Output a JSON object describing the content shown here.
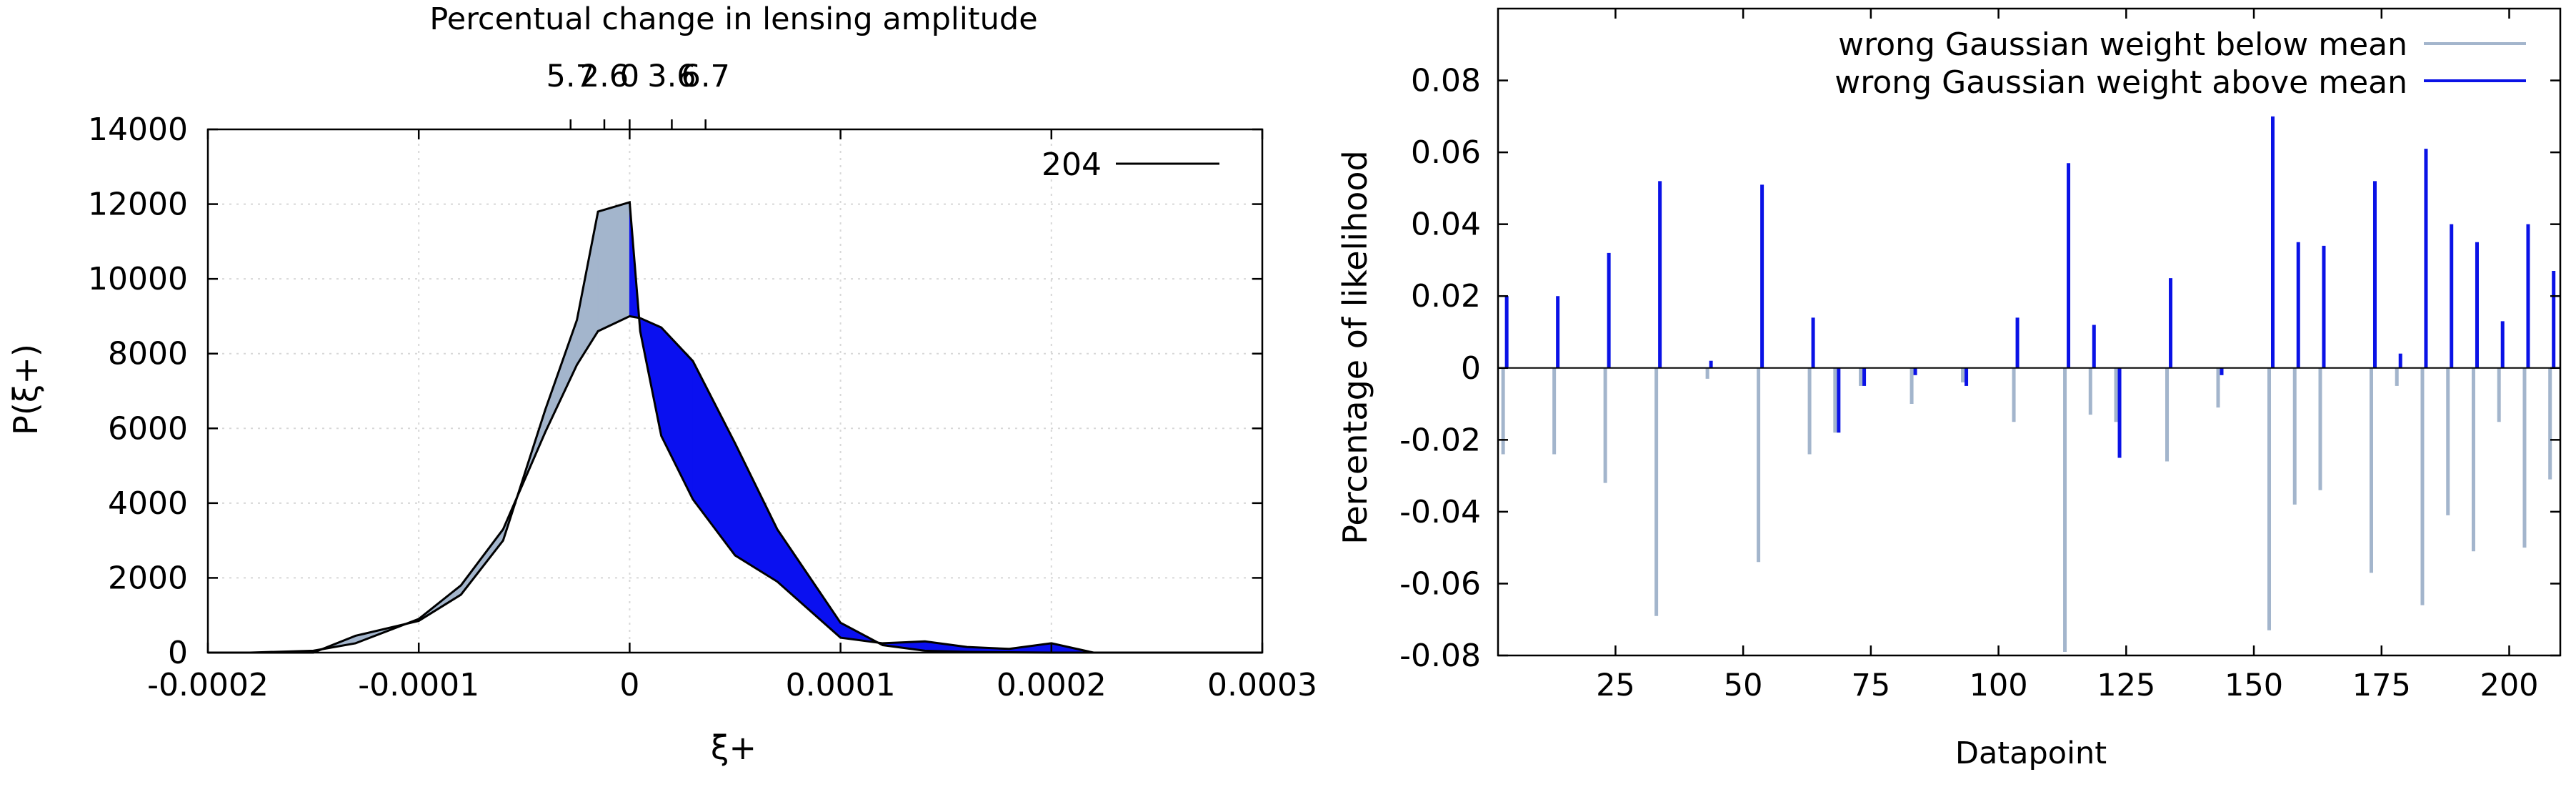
{
  "colors": {
    "below_fill": "#a3b5cc",
    "above_fill": "#0a10f0",
    "below_line": "#a3b5cc",
    "above_line": "#0a12e6",
    "outline": "#000000"
  },
  "chart_data": [
    {
      "type": "area",
      "title": "Percentual change in lensing amplitude",
      "xlabel": "ξ+",
      "ylabel": "P(ξ+)",
      "xlim": [
        -0.0002,
        0.0003
      ],
      "ylim": [
        0,
        14000
      ],
      "x_tick_labels": [
        "-0.0002",
        "-0.0001",
        "0",
        "0.0001",
        "0.0002",
        "0.0003"
      ],
      "y_tick_labels": [
        "0",
        "2000",
        "4000",
        "6000",
        "8000",
        "10000",
        "12000",
        "14000"
      ],
      "top_axis": {
        "labels": [
          "5.7",
          "2.6",
          "0",
          "3.6",
          "6.7"
        ],
        "positions_x": [
          -2.8e-05,
          -1.2e-05,
          0,
          2e-05,
          3.6e-05
        ]
      },
      "grid": true,
      "legend": {
        "position": "top-right",
        "entries": [
          "204"
        ]
      },
      "series": [
        {
          "name": "204",
          "x": [
            -0.0002,
            -0.00018,
            -0.00015,
            -0.00013,
            -0.0001,
            -8e-05,
            -6e-05,
            -4e-05,
            -2.5e-05,
            -1.5e-05,
            0,
            5e-06,
            1.5e-05,
            3e-05,
            5e-05,
            7e-05,
            0.0001,
            0.00012,
            0.00014,
            0.00016,
            0.00018,
            0.0002,
            0.00022,
            0.00024,
            0.00027,
            0.0003
          ],
          "y": [
            0,
            0,
            0,
            450,
            850,
            1550,
            3000,
            6500,
            8900,
            11800,
            12050,
            8600,
            5800,
            4100,
            2600,
            1900,
            400,
            250,
            300,
            150,
            100,
            250,
            0,
            0,
            0,
            0
          ]
        },
        {
          "name": "",
          "x": [
            -0.0002,
            -0.00018,
            -0.00015,
            -0.00013,
            -0.0001,
            -8e-05,
            -6e-05,
            -4e-05,
            -2.5e-05,
            -1.5e-05,
            0,
            5e-06,
            1.5e-05,
            3e-05,
            5e-05,
            7e-05,
            0.0001,
            0.00012,
            0.00014,
            0.00016,
            0.00018,
            0.0002,
            0.00022,
            0.00024,
            0.00027,
            0.0003
          ],
          "y": [
            0,
            0,
            50,
            250,
            900,
            1800,
            3300,
            5900,
            7700,
            8600,
            9000,
            8950,
            8700,
            7800,
            5600,
            3300,
            800,
            200,
            50,
            20,
            10,
            0,
            0,
            0,
            0,
            0
          ]
        }
      ]
    },
    {
      "type": "bar",
      "title": "",
      "xlabel": "Datapoint",
      "ylabel": "Percentage of likelihood",
      "xlim": [
        2,
        210
      ],
      "ylim": [
        -0.08,
        0.1
      ],
      "x_tick_labels": [
        "25",
        "50",
        "75",
        "100",
        "125",
        "150",
        "175",
        "200"
      ],
      "y_tick_labels": [
        "-0.08",
        "-0.06",
        "-0.04",
        "-0.02",
        "0",
        "0.02",
        "0.04",
        "0.06",
        "0.08"
      ],
      "grid": false,
      "legend": {
        "position": "top-right",
        "entries": [
          "wrong Gaussian weight below mean",
          "wrong Gaussian weight above mean"
        ]
      },
      "series": [
        {
          "name": "wrong Gaussian weight below mean",
          "x": [
            3,
            13,
            23,
            33,
            43,
            53,
            63,
            68,
            73,
            83,
            93,
            103,
            113,
            118,
            123,
            133,
            143,
            153,
            158,
            163,
            173,
            178,
            183,
            188,
            193,
            198,
            203,
            208
          ],
          "values": [
            -0.024,
            -0.024,
            -0.032,
            -0.069,
            -0.003,
            -0.054,
            -0.024,
            -0.018,
            -0.005,
            -0.01,
            -0.004,
            -0.015,
            -0.079,
            -0.013,
            -0.015,
            -0.026,
            -0.011,
            -0.073,
            -0.038,
            -0.034,
            -0.057,
            -0.005,
            -0.066,
            -0.041,
            -0.051,
            -0.015,
            -0.05,
            -0.031
          ]
        },
        {
          "name": "wrong Gaussian weight above mean",
          "x": [
            3,
            13,
            23,
            33,
            43,
            53,
            63,
            68,
            73,
            83,
            93,
            103,
            113,
            118,
            123,
            133,
            143,
            153,
            158,
            163,
            173,
            178,
            183,
            188,
            193,
            198,
            203,
            208
          ],
          "values": [
            0.02,
            0.02,
            0.032,
            0.052,
            0.002,
            0.051,
            0.014,
            -0.018,
            -0.005,
            -0.002,
            -0.005,
            0.014,
            0.057,
            0.012,
            -0.025,
            0.025,
            -0.002,
            0.07,
            0.035,
            0.034,
            0.052,
            0.004,
            0.061,
            0.04,
            0.035,
            0.013,
            0.04,
            0.027
          ]
        }
      ]
    }
  ]
}
